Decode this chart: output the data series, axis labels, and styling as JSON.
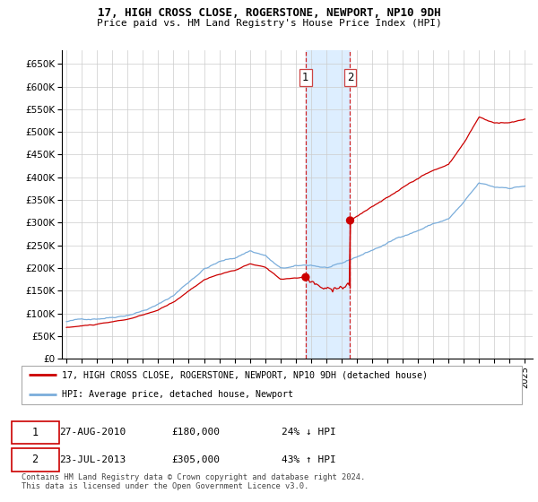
{
  "title1": "17, HIGH CROSS CLOSE, ROGERSTONE, NEWPORT, NP10 9DH",
  "title2": "Price paid vs. HM Land Registry's House Price Index (HPI)",
  "ylim": [
    0,
    680000
  ],
  "yticks": [
    0,
    50000,
    100000,
    150000,
    200000,
    250000,
    300000,
    350000,
    400000,
    450000,
    500000,
    550000,
    600000,
    650000
  ],
  "ytick_labels": [
    "£0",
    "£50K",
    "£100K",
    "£150K",
    "£200K",
    "£250K",
    "£300K",
    "£350K",
    "£400K",
    "£450K",
    "£500K",
    "£550K",
    "£600K",
    "£650K"
  ],
  "sale1_date": 2010.65,
  "sale1_price": 180000,
  "sale2_date": 2013.56,
  "sale2_price": 305000,
  "legend_line1": "17, HIGH CROSS CLOSE, ROGERSTONE, NEWPORT, NP10 9DH (detached house)",
  "legend_line2": "HPI: Average price, detached house, Newport",
  "sold_color": "#cc0000",
  "hpi_color": "#7aaddb",
  "background_color": "#ffffff",
  "grid_color": "#cccccc",
  "highlight_bg": "#ddeeff",
  "footnote1": "Contains HM Land Registry data © Crown copyright and database right 2024.",
  "footnote2": "This data is licensed under the Open Government Licence v3.0."
}
